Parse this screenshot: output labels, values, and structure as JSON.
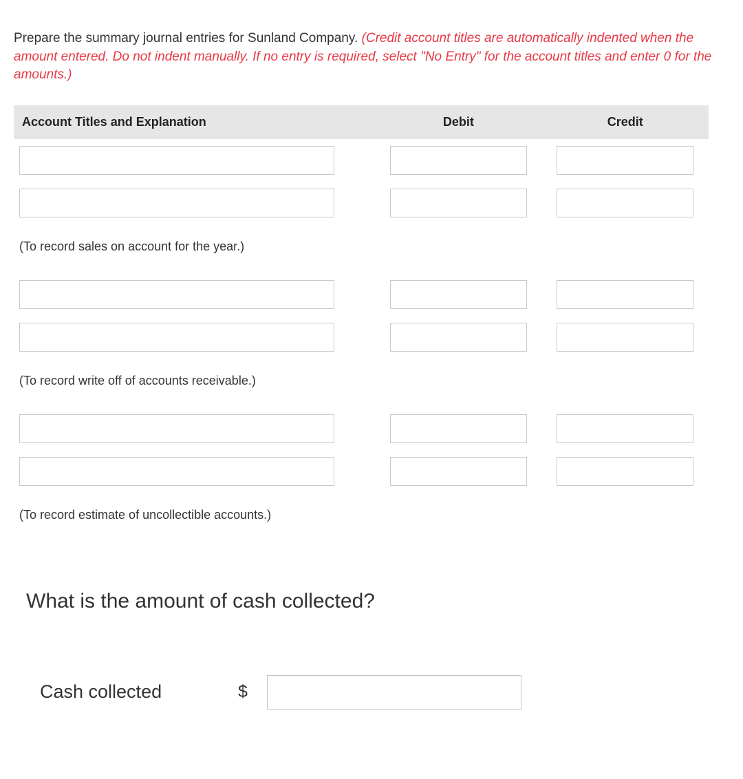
{
  "instructions": {
    "main": "Prepare the summary journal entries for Sunland Company. ",
    "emphasis": "(Credit account titles are automatically indented when the amount entered. Do not indent manually. If no entry is required, select \"No Entry\" for the account titles and enter 0 for the amounts.)"
  },
  "table": {
    "headers": {
      "account": "Account Titles and Explanation",
      "debit": "Debit",
      "credit": "Credit"
    },
    "groups": [
      {
        "caption": "(To record sales on account for the year.)",
        "rows": [
          {
            "account": "",
            "debit": "",
            "credit": ""
          },
          {
            "account": "",
            "debit": "",
            "credit": ""
          }
        ]
      },
      {
        "caption": "(To record write off of accounts receivable.)",
        "rows": [
          {
            "account": "",
            "debit": "",
            "credit": ""
          },
          {
            "account": "",
            "debit": "",
            "credit": ""
          }
        ]
      },
      {
        "caption": "(To record estimate of uncollectible accounts.)",
        "rows": [
          {
            "account": "",
            "debit": "",
            "credit": ""
          },
          {
            "account": "",
            "debit": "",
            "credit": ""
          }
        ]
      }
    ]
  },
  "question": {
    "heading": "What is the amount of cash collected?",
    "label": "Cash collected",
    "currency": "$",
    "value": ""
  },
  "colors": {
    "header_bg": "#e6e6e6",
    "border": "#c9c9c9",
    "emphasis": "#e63946",
    "text": "#333333"
  }
}
